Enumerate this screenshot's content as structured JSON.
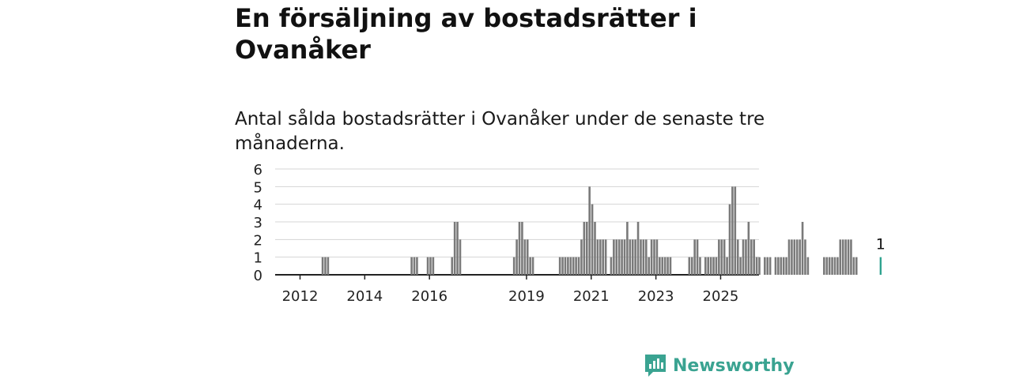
{
  "header": {
    "title": "En försäljning av bostadsrätter i Ovanåker",
    "subtitle": "Antal sålda bostadsrätter i Ovanåker under de senaste tre månaderna."
  },
  "brand": {
    "name": "Newsworthy",
    "icon": "newsworthy-logo-icon",
    "color": "#3aa391"
  },
  "colors": {
    "bar": "#7a7a7a",
    "highlight": "#2fa38f",
    "grid": "#d4d4d4",
    "axis": "#222222"
  },
  "chart_data": {
    "type": "bar",
    "x_unit": "month",
    "x_start": "2011-01",
    "y_ticks": [
      0,
      1,
      2,
      3,
      4,
      5,
      6
    ],
    "x_ticks": [
      "2012",
      "2014",
      "2016",
      "2019",
      "2021",
      "2023",
      "2025"
    ],
    "ylim": [
      0,
      6
    ],
    "grid": true,
    "highlight_label": "1",
    "values": [
      0,
      0,
      0,
      0,
      0,
      0,
      0,
      0,
      0,
      0,
      0,
      0,
      0,
      0,
      0,
      0,
      0,
      0,
      0,
      0,
      1,
      1,
      1,
      0,
      0,
      0,
      0,
      0,
      0,
      0,
      0,
      0,
      0,
      0,
      0,
      0,
      0,
      0,
      0,
      0,
      0,
      0,
      0,
      0,
      0,
      0,
      0,
      0,
      0,
      0,
      0,
      0,
      0,
      1,
      1,
      1,
      0,
      0,
      0,
      1,
      1,
      1,
      0,
      0,
      0,
      0,
      0,
      0,
      1,
      3,
      3,
      2,
      0,
      0,
      0,
      0,
      0,
      0,
      0,
      0,
      0,
      0,
      0,
      0,
      0,
      0,
      0,
      0,
      0,
      0,
      0,
      1,
      2,
      3,
      3,
      2,
      2,
      1,
      1,
      0,
      0,
      0,
      0,
      0,
      0,
      0,
      0,
      0,
      1,
      1,
      1,
      1,
      1,
      1,
      1,
      1,
      2,
      3,
      3,
      5,
      4,
      3,
      2,
      2,
      2,
      2,
      0,
      1,
      2,
      2,
      2,
      2,
      2,
      3,
      2,
      2,
      2,
      3,
      2,
      2,
      2,
      1,
      2,
      2,
      2,
      1,
      1,
      1,
      1,
      1,
      0,
      0,
      0,
      0,
      0,
      0,
      1,
      1,
      2,
      2,
      1,
      0,
      1,
      1,
      1,
      1,
      1,
      2,
      2,
      2,
      1,
      4,
      5,
      5,
      2,
      1,
      2,
      2,
      3,
      2,
      2,
      1,
      1,
      0,
      1,
      1,
      1,
      0,
      1,
      1,
      1,
      1,
      1,
      2,
      2,
      2,
      2,
      2,
      3,
      2,
      1,
      0,
      0,
      0,
      0,
      0,
      1,
      1,
      1,
      1,
      1,
      1,
      2,
      2,
      2,
      2,
      2,
      1,
      1,
      0,
      0,
      0,
      0,
      0,
      0,
      0,
      0,
      1
    ]
  }
}
